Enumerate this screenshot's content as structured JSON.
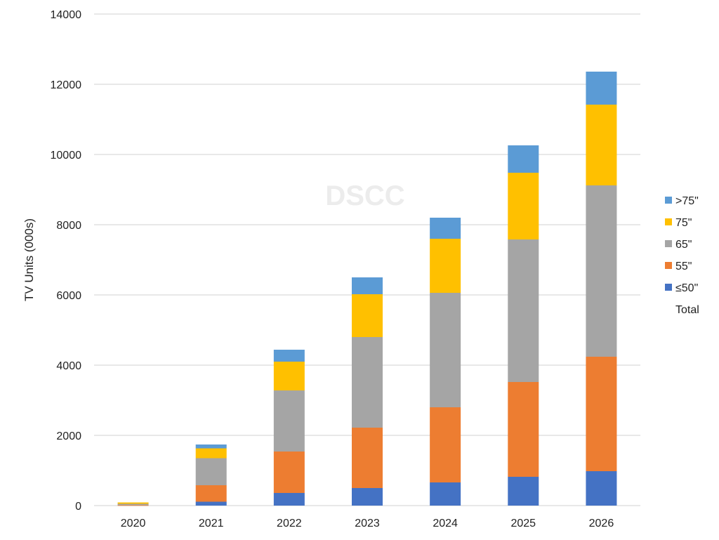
{
  "chart_data": {
    "type": "bar",
    "stacked": true,
    "title": "",
    "xlabel": "",
    "ylabel": "TV Units (000s)",
    "ylim": [
      0,
      14000
    ],
    "yticks": [
      0,
      2000,
      4000,
      6000,
      8000,
      10000,
      12000,
      14000
    ],
    "grid": true,
    "legend_position": "right",
    "watermark": "DSCC",
    "categories": [
      "2020",
      "2021",
      "2022",
      "2023",
      "2024",
      "2025",
      "2026"
    ],
    "series": [
      {
        "name": "≤50\"",
        "color": "#4472C4",
        "values": [
          0,
          110,
          360,
          500,
          660,
          820,
          980
        ]
      },
      {
        "name": "55\"",
        "color": "#ED7D31",
        "values": [
          10,
          470,
          1180,
          1720,
          2140,
          2700,
          3260
        ]
      },
      {
        "name": "65\"",
        "color": "#A5A5A5",
        "values": [
          40,
          770,
          1740,
          2580,
          3260,
          4060,
          4880
        ]
      },
      {
        "name": "75\"",
        "color": "#FFC000",
        "values": [
          40,
          280,
          820,
          1220,
          1540,
          1900,
          2300
        ]
      },
      {
        "name": ">75\"",
        "color": "#5B9BD5",
        "values": [
          0,
          110,
          340,
          480,
          600,
          780,
          940
        ]
      }
    ],
    "legend": [
      ">75\"",
      "75\"",
      "65\"",
      "55\"",
      "≤50\"",
      "Total"
    ],
    "totals": [
      90,
      1740,
      4440,
      6500,
      8200,
      10260,
      12360
    ]
  }
}
